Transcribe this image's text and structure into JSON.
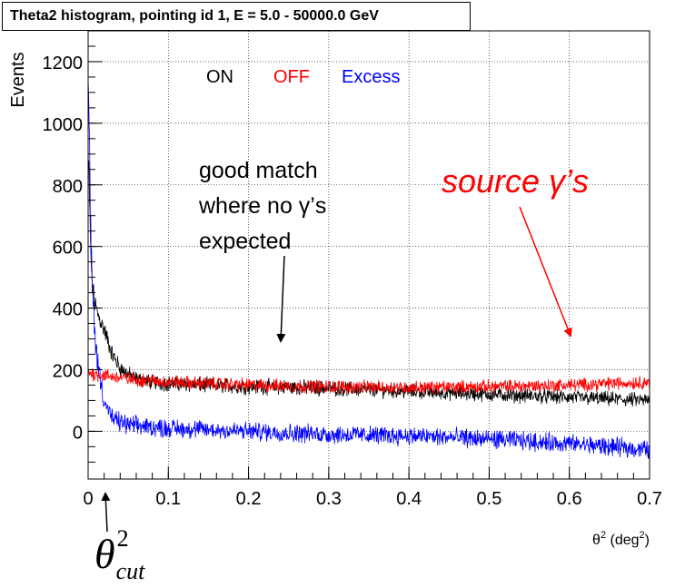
{
  "chart_data": {
    "type": "line",
    "title": "Theta2 histogram, pointing id 1, E = 5.0 - 50000.0 GeV",
    "ylabel": "Events",
    "xlabel_parts": {
      "base": "θ",
      "sup": "2",
      "open": " (deg",
      "unit_sup": "2",
      "close": ")"
    },
    "xlim": [
      0,
      0.7
    ],
    "ylim": [
      -155,
      1300
    ],
    "x_ticks": [
      0,
      0.1,
      0.2,
      0.3,
      0.4,
      0.5,
      0.6,
      0.7
    ],
    "x_tick_labels": [
      "0",
      "0.1",
      "0.2",
      "0.3",
      "0.4",
      "0.5",
      "0.6",
      "0.7"
    ],
    "y_ticks": [
      0,
      200,
      400,
      600,
      800,
      1000,
      1200
    ],
    "y_tick_labels": [
      "0",
      "200",
      "400",
      "600",
      "800",
      "1000",
      "1200"
    ],
    "grid": true,
    "legend_placement": "top-left",
    "series": [
      {
        "name": "ON",
        "color": "#000000",
        "x": [
          0.001,
          0.003,
          0.005,
          0.008,
          0.012,
          0.02,
          0.03,
          0.04,
          0.05,
          0.06,
          0.08,
          0.1,
          0.15,
          0.2,
          0.3,
          0.4,
          0.5,
          0.6,
          0.7
        ],
        "values": [
          850,
          600,
          480,
          420,
          380,
          330,
          250,
          205,
          185,
          170,
          160,
          155,
          150,
          145,
          140,
          130,
          120,
          110,
          100
        ]
      },
      {
        "name": "OFF",
        "color": "#ff0000",
        "x": [
          0.001,
          0.01,
          0.05,
          0.1,
          0.2,
          0.3,
          0.4,
          0.5,
          0.6,
          0.7
        ],
        "values": [
          190,
          185,
          170,
          160,
          150,
          145,
          142,
          145,
          150,
          160
        ]
      },
      {
        "name": "Excess",
        "color": "#0000ff",
        "x": [
          0.001,
          0.003,
          0.005,
          0.008,
          0.012,
          0.02,
          0.03,
          0.05,
          0.1,
          0.2,
          0.3,
          0.4,
          0.5,
          0.6,
          0.7
        ],
        "values": [
          1050,
          680,
          480,
          330,
          220,
          100,
          40,
          20,
          10,
          0,
          -10,
          -15,
          -25,
          -40,
          -60
        ]
      }
    ],
    "annotations": {
      "match_lines": [
        "good match",
        "where no γ’s",
        "expected"
      ],
      "source_label": "source γ’s",
      "cut_symbol": "θ",
      "cut_sup": "2",
      "cut_sub": "cut"
    }
  }
}
